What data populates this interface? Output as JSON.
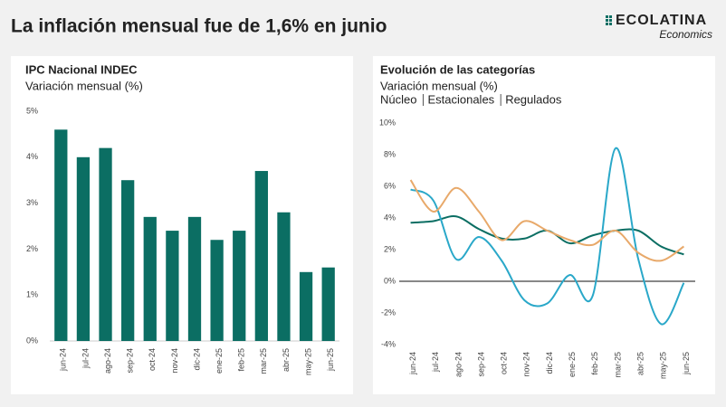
{
  "header": {
    "title": "La inflación mensual fue de 1,6% en junio",
    "brand": "ECOLATINA",
    "brand_sub": "Economics"
  },
  "chart_data": [
    {
      "type": "bar",
      "title": "IPC Nacional INDEC",
      "subtitle": "Variación mensual (%)",
      "categories": [
        "jun-24",
        "jul-24",
        "ago-24",
        "sep-24",
        "oct-24",
        "nov-24",
        "dic-24",
        "ene-25",
        "feb-25",
        "mar-25",
        "abr-25",
        "may-25",
        "jun-25"
      ],
      "values": [
        4.6,
        4.0,
        4.2,
        3.5,
        2.7,
        2.4,
        2.7,
        2.2,
        2.4,
        3.7,
        2.8,
        1.5,
        1.6
      ],
      "color": "#0b6e63",
      "ylim": [
        0,
        5
      ],
      "yticks": [
        {
          "value": 0,
          "label": "0%"
        },
        {
          "value": 1,
          "label": "1%"
        },
        {
          "value": 2,
          "label": "2%"
        },
        {
          "value": 3,
          "label": "3%"
        },
        {
          "value": 4,
          "label": "4%"
        },
        {
          "value": 5,
          "label": "5%"
        }
      ]
    },
    {
      "type": "line",
      "title": "Evolución de las categorías",
      "subtitle": "Variación mensual (%)",
      "categories": [
        "jun-24",
        "jul-24",
        "ago-24",
        "sep-24",
        "oct-24",
        "nov-24",
        "dic-24",
        "ene-25",
        "feb-25",
        "mar-25",
        "abr-25",
        "may-25",
        "jun-25"
      ],
      "series": [
        {
          "name": "Núcleo",
          "color": "#0b6e63",
          "values": [
            3.7,
            3.8,
            4.1,
            3.3,
            2.7,
            2.7,
            3.2,
            2.4,
            2.9,
            3.2,
            3.2,
            2.2,
            1.7
          ]
        },
        {
          "name": "Estacionales",
          "color": "#2aa8c9",
          "values": [
            5.8,
            5.1,
            1.4,
            2.8,
            1.3,
            -1.2,
            -1.4,
            0.4,
            -0.9,
            8.4,
            1.4,
            -2.7,
            -0.1
          ]
        },
        {
          "name": "Regulados",
          "color": "#e8a96a",
          "values": [
            6.4,
            4.4,
            5.9,
            4.4,
            2.6,
            3.8,
            3.2,
            2.6,
            2.3,
            3.2,
            1.8,
            1.3,
            2.2
          ]
        }
      ],
      "ylim": [
        -4,
        10
      ],
      "yticks": [
        {
          "value": -4,
          "label": "-4%"
        },
        {
          "value": -2,
          "label": "-2%"
        },
        {
          "value": 0,
          "label": "0%"
        },
        {
          "value": 2,
          "label": "2%"
        },
        {
          "value": 4,
          "label": "4%"
        },
        {
          "value": 6,
          "label": "6%"
        },
        {
          "value": 8,
          "label": "8%"
        },
        {
          "value": 10,
          "label": "10%"
        }
      ]
    }
  ]
}
